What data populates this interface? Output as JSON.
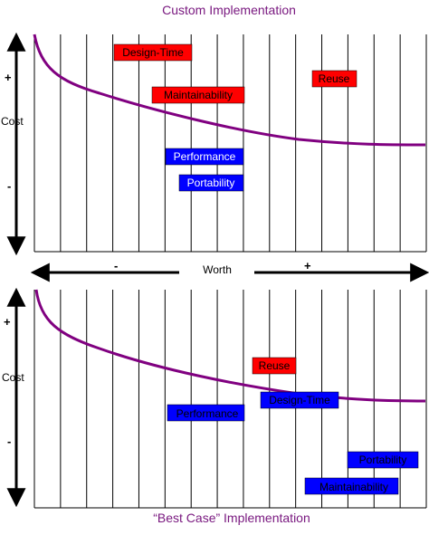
{
  "top_chart": {
    "title": "Custom Implementation",
    "y_label": "Cost",
    "y_plus": "+",
    "y_minus": "-",
    "tags": [
      {
        "label": "Design-Time",
        "color": "#ff0000",
        "text_color": "#000000"
      },
      {
        "label": "Reuse",
        "color": "#ff0000",
        "text_color": "#000000"
      },
      {
        "label": "Maintainability",
        "color": "#ff0000",
        "text_color": "#000000"
      },
      {
        "label": "Performance",
        "color": "#0000ff",
        "text_color": "#ffffff"
      },
      {
        "label": "Portability",
        "color": "#0000ff",
        "text_color": "#ffffff"
      }
    ]
  },
  "worth_axis": {
    "label": "Worth",
    "minus": "-",
    "plus": "+"
  },
  "bottom_chart": {
    "title": "“Best Case” Implementation",
    "y_label": "Cost",
    "y_plus": "+",
    "y_minus": "-",
    "tags": [
      {
        "label": "Reuse",
        "color": "#ff0000",
        "text_color": "#000000"
      },
      {
        "label": "Design-Time",
        "color": "#0000ff",
        "text_color": "#000000"
      },
      {
        "label": "Performance",
        "color": "#0000ff",
        "text_color": "#000000"
      },
      {
        "label": "Portability",
        "color": "#0000ff",
        "text_color": "#000000"
      },
      {
        "label": "Maintainability",
        "color": "#0000ff",
        "text_color": "#000000"
      }
    ]
  },
  "colors": {
    "curve": "#800080",
    "title": "#7a1a80",
    "grid": "#000000"
  }
}
